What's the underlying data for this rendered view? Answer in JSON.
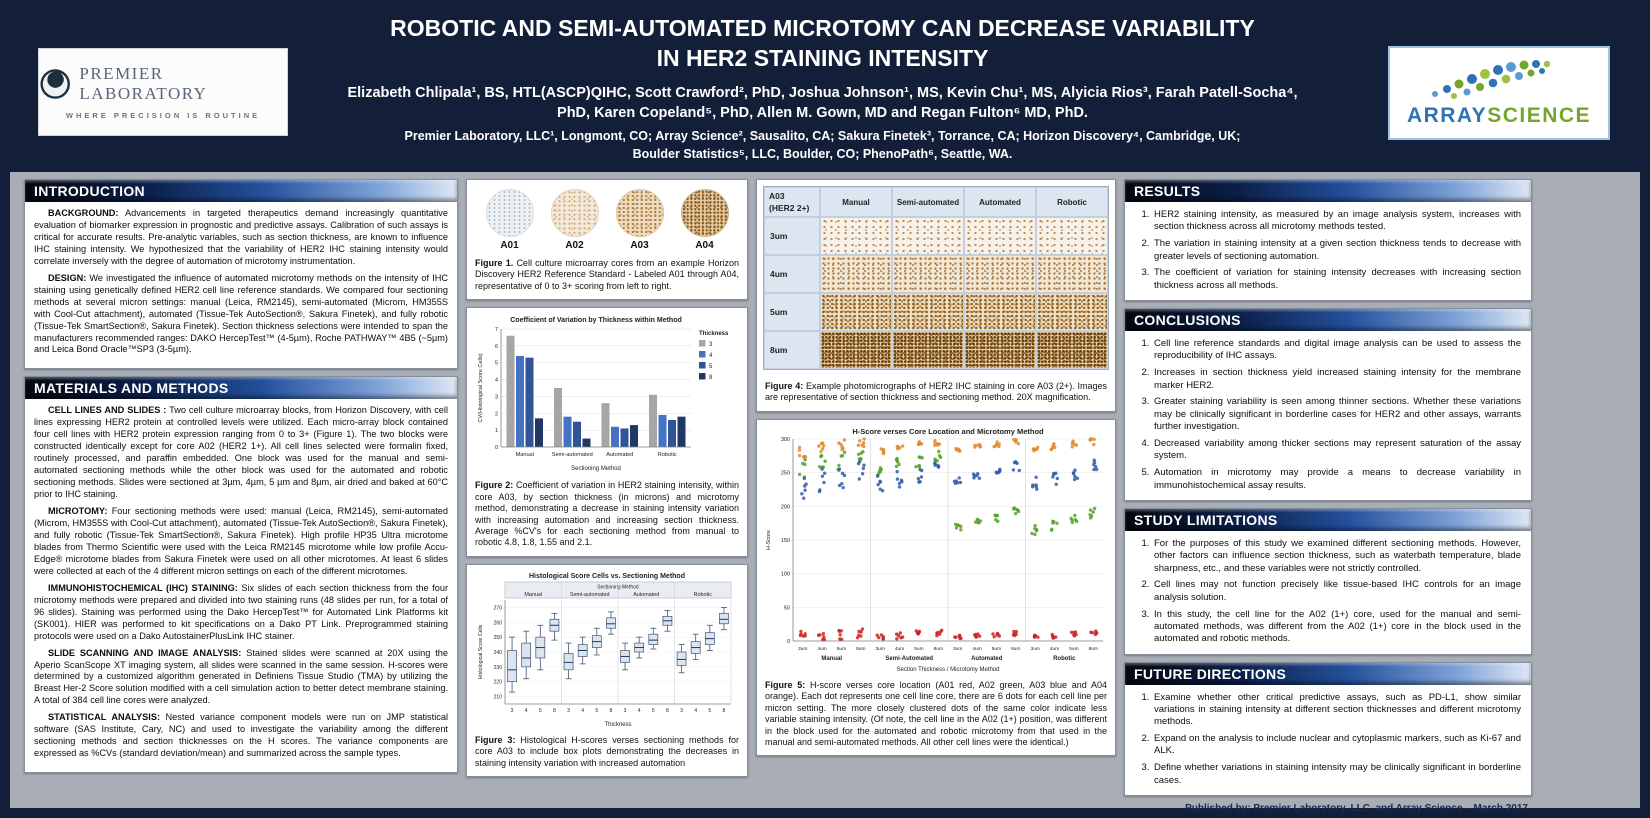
{
  "header": {
    "title_line1": "ROBOTIC AND SEMI-AUTOMATED MICROTOMY CAN DECREASE VARIABILITY",
    "title_line2": "IN HER2 STAINING INTENSITY",
    "authors_line1": "Elizabeth Chlipala¹, BS, HTL(ASCP)QIHC, Scott Crawford², PhD, Joshua Johnson¹, MS,  Kevin Chu¹, MS, Alyicia Rios³, Farah Patell-Socha⁴,",
    "authors_line2": "PhD,  Karen Copeland⁵, PhD, Allen M. Gown, MD and Regan Fulton⁶ MD, PhD.",
    "affiliations_line1": "Premier Laboratory, LLC¹, Longmont, CO; Array Science², Sausalito, CA; Sakura Finetek³, Torrance, CA; Horizon Discovery⁴, Cambridge, UK;",
    "affiliations_line2": "Boulder Statistics⁵, LLC, Boulder, CO; PhenoPath⁶, Seattle, WA."
  },
  "logos": {
    "premier": {
      "name": "PREMIER LABORATORY",
      "tagline": "WHERE PRECISION IS ROUTINE"
    },
    "array": {
      "word1": "ARRAY",
      "word2": "SCIENCE"
    }
  },
  "sections": {
    "introduction": {
      "title": "INTRODUCTION",
      "paragraphs": [
        {
          "label": "BACKGROUND:",
          "text": "Advancements in targeted therapeutics demand increasingly quantitative evaluation of biomarker expression in prognostic and predictive assays. Calibration of such assays is critical for accurate results. Pre-analytic variables, such as section thickness, are known to influence IHC staining intensity. We hypothesized that the variability of HER2 IHC staining intensity would correlate inversely with the degree of automation of microtomy instrumentation."
        },
        {
          "label": "DESIGN:",
          "text": "We investigated the influence of automated microtomy methods on the intensity of IHC staining using genetically defined HER2 cell line reference standards. We compared four sectioning methods at several micron settings: manual (Leica, RM2145), semi-automated (Microm, HM355S with Cool-Cut attachment), automated (Tissue-Tek AutoSection®, Sakura Finetek), and fully robotic (Tissue-Tek SmartSection®, Sakura Finetek).  Section thickness selections were intended to span the manufacturers recommended ranges: DAKO HercepTest™ (4-5µm), Roche PATHWAY™  4B5 (~5µm) and Leica Bond Oracle™SP3 (3-5µm)."
        }
      ]
    },
    "materials": {
      "title": "MATERIALS AND METHODS",
      "paragraphs": [
        {
          "label": "CELL LINES AND SLIDES :",
          "text": "Two cell culture microarray blocks, from Horizon Discovery, with cell lines expressing HER2 protein at controlled levels were utilized.  Each micro-array block contained four cell lines with HER2 protein expression ranging from 0 to 3+ (Figure 1).  The two blocks were constructed identically except for core A02 (HER2 1+).  All cell lines selected were formalin fixed, routinely processed, and paraffin embedded. One block was used for the manual and semi-automated sectioning methods while the other block was used for the automated and robotic sectioning methods. Slides were sectioned at 3µm, 4µm, 5 µm and 8µm, air dried and baked at 60°C prior to IHC staining."
        },
        {
          "label": "MICROTOMY:",
          "text": "Four sectioning methods were used: manual (Leica, RM2145), semi-automated (Microm, HM355S with Cool-Cut attachment), automated (Tissue-Tek AutoSection®, Sakura Finetek), and fully robotic (Tissue-Tek SmartSection®, Sakura Finetek).  High profile HP35 Ultra microtome blades from Thermo Scientific were used with the Leica RM2145 microtome while low profile Accu-Edge® microtome blades from Sakura Finetek were used on all other microtomes.  At least 6 slides were collected at each of the 4 different micron settings on each of the different microtomes."
        },
        {
          "label": "IMMUNOHISTOCHEMICAL (IHC) STAINING:",
          "text": "Six slides of each section thickness from the four microtomy methods were prepared and divided into two staining runs (48 slides per run, for a total of 96 slides).  Staining was performed using the Dako HercepTest™ for Automated Link Platforms kit (SK001). HIER was performed to kit specifications on a Dako PT Link. Preprogrammed staining protocols were used on a Dako AutostainerPlusLink IHC stainer."
        },
        {
          "label": "SLIDE SCANNING AND IMAGE ANALYSIS:",
          "text": "Stained slides were scanned at 20X using the Aperio ScanScope XT imaging system, all slides were scanned in the same session.  H-scores were determined by a customized algorithm generated in Definiens Tissue Studio (TMA) by utilizing the Breast  Her-2 Score solution modified with a cell simulation action to better detect membrane staining.  A total of 384 cell line cores were analyzed."
        },
        {
          "label": "STATISTICAL ANALYSIS:",
          "text": "Nested variance component models were run on JMP statistical software (SAS Institute, Cary, NC) and used to investigate the variability among the different sectioning methods and section thicknesses on the H scores. The variance components are expressed as %CVs (standard deviation/mean) and summarized across the sample types."
        }
      ]
    },
    "results": {
      "title": "RESULTS",
      "items": [
        "HER2 staining intensity, as measured by an image analysis system, increases with section thickness across all microtomy methods tested.",
        "The variation in staining intensity at a given section thickness tends to decrease with greater levels of sectioning automation.",
        "The coefficient of variation for staining intensity decreases with increasing section thickness across all methods."
      ]
    },
    "conclusions": {
      "title": "CONCLUSIONS",
      "items": [
        "Cell line reference standards and digital image analysis can be used to assess the reproducibility of IHC assays.",
        "Increases in section thickness yield increased staining intensity for the membrane marker HER2.",
        "Greater staining variability is seen among thinner sections.  Whether these variations may be clinically significant in borderline cases for HER2 and other assays, warrants further investigation.",
        "Decreased variability among thicker sections may represent saturation of the assay system.",
        "Automation in microtomy may provide a means to decrease variability in immunohistochemical assay results."
      ]
    },
    "limitations": {
      "title": "STUDY LIMITATIONS",
      "items": [
        "For the purposes of this study we examined different sectioning methods. However, other factors can influence section thickness, such as waterbath temperature, blade sharpness, etc., and these variables were not strictly controlled.",
        "Cell lines may not function precisely like tissue-based IHC controls for an image analysis solution.",
        "In this study, the cell line for the A02 (1+) core, used for the manual and semi-automated methods, was different from the A02 (1+) core in the block used in the automated and robotic methods."
      ]
    },
    "future": {
      "title": "FUTURE DIRECTIONS",
      "items": [
        "Examine whether other critical predictive assays, such as PD-L1, show similar variations in staining intensity at different section thicknesses and different microtomy methods.",
        "Expand on the analysis to include nuclear and cytoplasmic markers, such as Ki-67 and ALK.",
        "Define whether variations in staining intensity may be clinically significant in borderline cases."
      ]
    }
  },
  "figure1": {
    "core_labels": [
      "A01",
      "A02",
      "A03",
      "A04"
    ],
    "caption_label": "Figure 1.",
    "caption_text": "Cell culture microarray cores from an example Horizon Discovery HER2 Reference Standard - Labeled A01  through A04, representative of 0 to 3+ scoring from left  to right."
  },
  "figure2": {
    "caption_label": "Figure 2:",
    "caption_text": "Coefficient of variation in HER2 staining intensity, within core A03, by section thickness (in microns) and microtomy method, demonstrating a decrease in staining intensity variation with increasing automation and increasing section thickness. Average %CV's for each sectioning method from manual to robotic 4.8, 1.8, 1.55 and 2.1."
  },
  "figure3": {
    "caption_label": "Figure 3:",
    "caption_text": "Histological H-scores verses sectioning methods for core A03 to include box plots demonstrating the decreases in staining intensity variation with increased automation"
  },
  "figure4": {
    "corner_line1": "A03",
    "corner_line2": "(HER2 2+)",
    "col_headers": [
      "Manual",
      "Semi-automated",
      "Automated",
      "Robotic"
    ],
    "row_labels": [
      "3um",
      "4um",
      "5um",
      "8um"
    ],
    "caption_label": "Figure 4:",
    "caption_text": "Example photomicrographs of HER2 IHC staining in core A03 (2+). Images are representative of section thickness and sectioning method.  20X magnification."
  },
  "figure5": {
    "caption_label": "Figure 5:",
    "caption_text": "H-score verses core location (A01 red, A02 green, A03 blue and A04 orange). Each dot represents one cell line core, there are 6 dots for each cell line per micron setting.  The more closely clustered dots of the same color  indicate less variable staining intensity. (Of note, the cell line in the A02 (1+) position,  was different in the block used for the automated and robotic microtomy from that used in the  manual and semi-automated methods. All other cell lines were the identical.)"
  },
  "footer": {
    "text": "Published by:  Premier Laboratory, LLC. and Array Science – March 2017"
  },
  "chart_data": [
    {
      "id": "fig2-cv-bars",
      "type": "bar",
      "title": "Coefficient of Variation by Thickness within Method",
      "xlabel": "Sectioning Method",
      "ylabel": "CV(Histological Score Cells)",
      "ylim": [
        0,
        7
      ],
      "grid": true,
      "legend_title": "Thickness",
      "legend_position": "right",
      "categories": [
        "Manual",
        "Semi-automated",
        "Automated",
        "Robotic"
      ],
      "series": [
        {
          "name": "3",
          "color": "#a6a6a6",
          "values": [
            6.6,
            3.5,
            2.6,
            3.1
          ]
        },
        {
          "name": "4",
          "color": "#4472c4",
          "values": [
            5.4,
            1.8,
            1.2,
            1.9
          ]
        },
        {
          "name": "5",
          "color": "#2f5597",
          "values": [
            5.3,
            1.5,
            1.1,
            1.6
          ]
        },
        {
          "name": "8",
          "color": "#1f3864",
          "values": [
            1.7,
            0.5,
            1.3,
            1.8
          ]
        }
      ],
      "method_average_cv": [
        4.8,
        1.8,
        1.55,
        2.1
      ]
    },
    {
      "id": "fig3-boxplot",
      "type": "box",
      "title": "Histological Score Cells vs. Sectioning Method",
      "group_axis_label": "Sectioning Method",
      "xlabel": "Thickness",
      "ylabel": "Histological Score Cells",
      "ylim": [
        205,
        275
      ],
      "groups": [
        "Manual",
        "Semi-automated",
        "Automated",
        "Robotic"
      ],
      "thicknesses": [
        "3",
        "4",
        "5",
        "8"
      ],
      "boxes": [
        {
          "group": "Manual",
          "thickness": "3",
          "lo": 213,
          "q1": 220,
          "med": 228,
          "q3": 241,
          "hi": 250
        },
        {
          "group": "Manual",
          "thickness": "4",
          "lo": 222,
          "q1": 230,
          "med": 236,
          "q3": 246,
          "hi": 254
        },
        {
          "group": "Manual",
          "thickness": "5",
          "lo": 228,
          "q1": 236,
          "med": 243,
          "q3": 250,
          "hi": 258
        },
        {
          "group": "Manual",
          "thickness": "8",
          "lo": 248,
          "q1": 254,
          "med": 258,
          "q3": 262,
          "hi": 266
        },
        {
          "group": "Semi-automated",
          "thickness": "3",
          "lo": 222,
          "q1": 228,
          "med": 233,
          "q3": 239,
          "hi": 246
        },
        {
          "group": "Semi-automated",
          "thickness": "4",
          "lo": 232,
          "q1": 237,
          "med": 241,
          "q3": 245,
          "hi": 250
        },
        {
          "group": "Semi-automated",
          "thickness": "5",
          "lo": 238,
          "q1": 243,
          "med": 247,
          "q3": 251,
          "hi": 256
        },
        {
          "group": "Semi-automated",
          "thickness": "8",
          "lo": 252,
          "q1": 256,
          "med": 259,
          "q3": 263,
          "hi": 267
        },
        {
          "group": "Automated",
          "thickness": "3",
          "lo": 228,
          "q1": 233,
          "med": 237,
          "q3": 241,
          "hi": 246
        },
        {
          "group": "Automated",
          "thickness": "4",
          "lo": 236,
          "q1": 240,
          "med": 243,
          "q3": 246,
          "hi": 250
        },
        {
          "group": "Automated",
          "thickness": "5",
          "lo": 242,
          "q1": 245,
          "med": 248,
          "q3": 252,
          "hi": 256
        },
        {
          "group": "Automated",
          "thickness": "8",
          "lo": 254,
          "q1": 258,
          "med": 261,
          "q3": 264,
          "hi": 268
        },
        {
          "group": "Robotic",
          "thickness": "3",
          "lo": 226,
          "q1": 231,
          "med": 235,
          "q3": 240,
          "hi": 245
        },
        {
          "group": "Robotic",
          "thickness": "4",
          "lo": 235,
          "q1": 239,
          "med": 243,
          "q3": 247,
          "hi": 252
        },
        {
          "group": "Robotic",
          "thickness": "5",
          "lo": 241,
          "q1": 245,
          "med": 249,
          "q3": 253,
          "hi": 258
        },
        {
          "group": "Robotic",
          "thickness": "8",
          "lo": 255,
          "q1": 259,
          "med": 262,
          "q3": 266,
          "hi": 270
        }
      ]
    },
    {
      "id": "fig5-scatter",
      "type": "scatter",
      "title": "H-Score verses Core Location and Microtomy Method",
      "xlabel": "Section Thickness / Microtomy Method",
      "ylabel": "H-Score",
      "ylim": [
        0,
        300
      ],
      "groups": [
        "Manual",
        "Semi-Automated",
        "Automated",
        "Robotic"
      ],
      "thickness_labels": [
        "3um",
        "4um",
        "5um",
        "8um"
      ],
      "points_per_cluster": 6,
      "group_spread_factors": [
        1.6,
        1.0,
        0.6,
        0.8
      ],
      "series": [
        {
          "name": "A01",
          "color": "#cc2222",
          "spread": 5,
          "means": [
            8,
            9,
            10,
            12,
            7,
            8,
            10,
            12,
            6,
            8,
            9,
            11,
            7,
            8,
            10,
            12
          ]
        },
        {
          "name": "A02",
          "color": "#55a02a",
          "spread": 10,
          "means": [
            258,
            263,
            268,
            272,
            256,
            262,
            267,
            272,
            168,
            175,
            182,
            192,
            165,
            172,
            180,
            190
          ]
        },
        {
          "name": "A03",
          "color": "#2e5ca8",
          "spread": 12,
          "means": [
            230,
            238,
            245,
            258,
            233,
            240,
            247,
            259,
            236,
            242,
            248,
            260,
            234,
            242,
            248,
            261
          ]
        },
        {
          "name": "A04",
          "color": "#e08a2e",
          "spread": 6,
          "means": [
            283,
            287,
            290,
            294,
            284,
            288,
            291,
            295,
            285,
            289,
            292,
            296,
            284,
            288,
            292,
            296
          ]
        }
      ]
    }
  ]
}
